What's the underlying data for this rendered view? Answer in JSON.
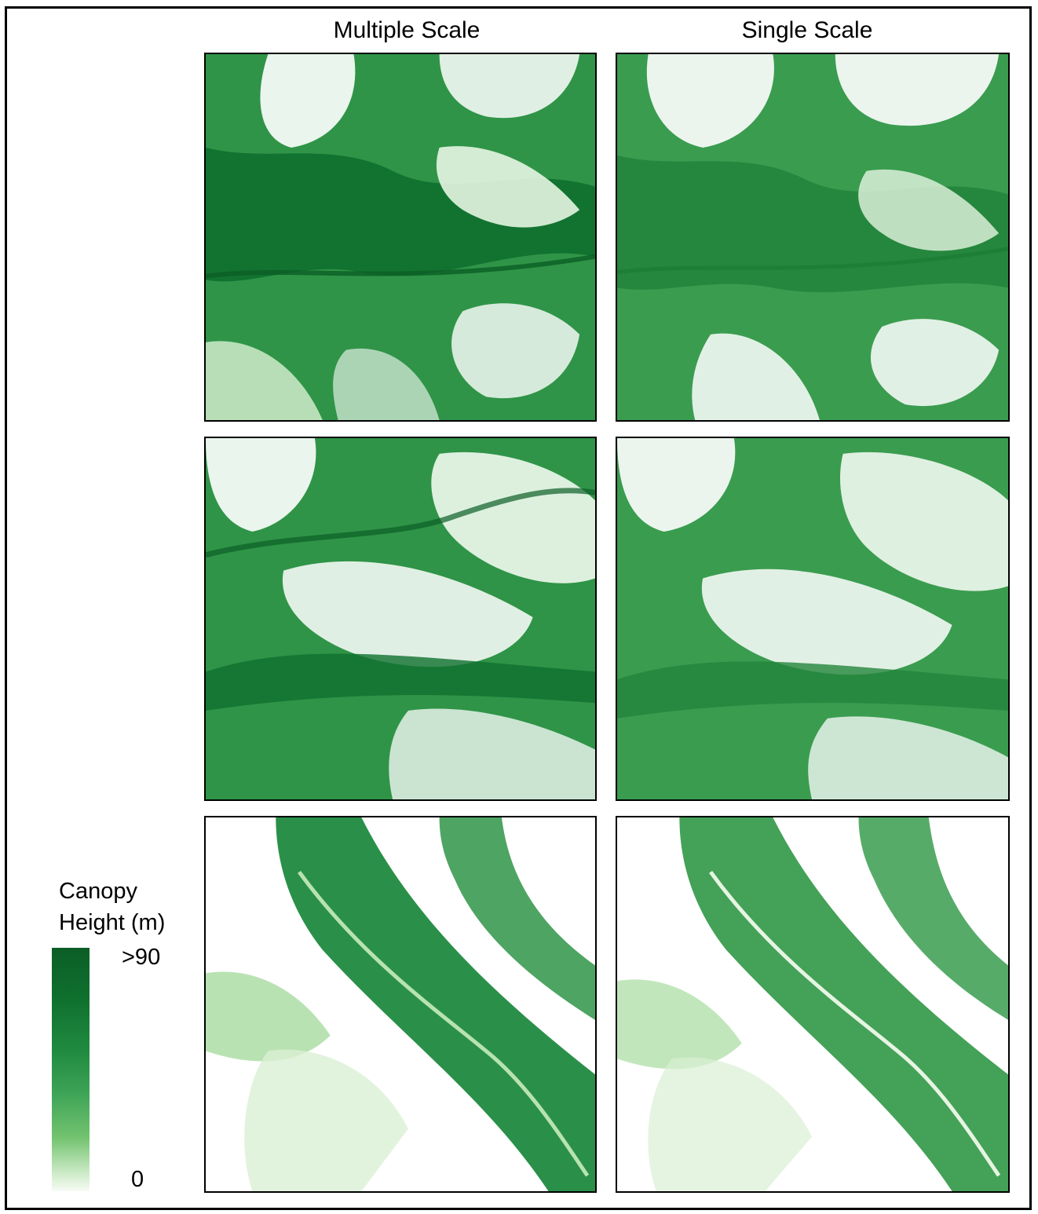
{
  "columns": {
    "left_title": "Multiple Scale",
    "right_title": "Single Scale"
  },
  "legend": {
    "title_line1": "Canopy",
    "title_line2": "Height (m)",
    "max_label": ">90",
    "min_label": "0"
  },
  "colors": {
    "dark_green": "#0b5e26",
    "mid_green": "#2f9447",
    "light_green": "#a8dba0",
    "white": "#ffffff"
  },
  "panels": [
    {
      "row": 1,
      "column": "Multiple Scale",
      "image": "canopy-height-map"
    },
    {
      "row": 1,
      "column": "Single Scale",
      "image": "canopy-height-map"
    },
    {
      "row": 2,
      "column": "Multiple Scale",
      "image": "canopy-height-map"
    },
    {
      "row": 2,
      "column": "Single Scale",
      "image": "canopy-height-map"
    },
    {
      "row": 3,
      "column": "Multiple Scale",
      "image": "canopy-height-map"
    },
    {
      "row": 3,
      "column": "Single Scale",
      "image": "canopy-height-map"
    }
  ]
}
